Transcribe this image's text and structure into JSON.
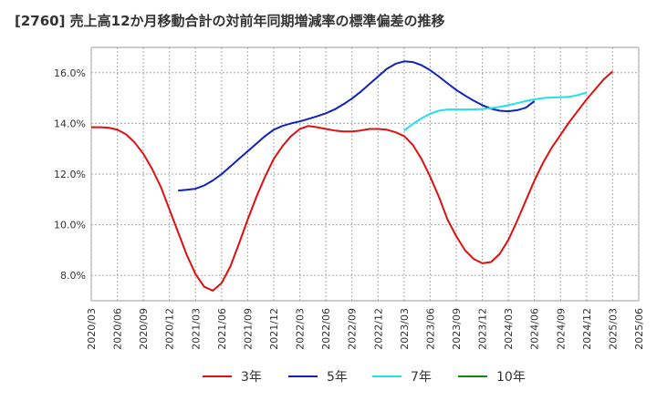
{
  "chart_data": {
    "type": "line",
    "title": "[2760]  売上高12か月移動合計の対前年同期増減率の標準偏差の推移",
    "xlabel": "",
    "ylabel": "",
    "ylim": [
      7.0,
      17.0
    ],
    "yticks": [
      8.0,
      10.0,
      12.0,
      14.0,
      16.0
    ],
    "ytick_labels": [
      "8.0%",
      "10.0%",
      "12.0%",
      "14.0%",
      "16.0%"
    ],
    "xtick_labels": [
      "2020/03",
      "2020/06",
      "2020/09",
      "2020/12",
      "2021/03",
      "2021/06",
      "2021/09",
      "2021/12",
      "2022/03",
      "2022/06",
      "2022/09",
      "2022/12",
      "2023/03",
      "2023/06",
      "2023/09",
      "2023/12",
      "2024/03",
      "2024/06",
      "2024/09",
      "2024/12",
      "2025/03",
      "2025/06"
    ],
    "grid": true,
    "legend_position": "bottom",
    "series": [
      {
        "name": "3年",
        "color": "#dd1111",
        "start": "2020/03",
        "values": [
          13.85,
          13.85,
          13.83,
          13.75,
          13.57,
          13.25,
          12.8,
          12.2,
          11.5,
          10.6,
          9.7,
          8.8,
          8.05,
          7.55,
          7.4,
          7.7,
          8.35,
          9.25,
          10.2,
          11.1,
          11.9,
          12.6,
          13.1,
          13.5,
          13.78,
          13.9,
          13.85,
          13.78,
          13.72,
          13.68,
          13.68,
          13.72,
          13.78,
          13.78,
          13.75,
          13.65,
          13.5,
          13.15,
          12.6,
          11.9,
          11.1,
          10.2,
          9.55,
          9.0,
          8.65,
          8.48,
          8.53,
          8.85,
          9.4,
          10.15,
          10.95,
          11.75,
          12.45,
          13.05,
          13.55,
          14.05,
          14.5,
          14.95,
          15.35,
          15.75,
          16.05
        ]
      },
      {
        "name": "5年",
        "color": "#1122bb",
        "start": "2021/01",
        "values": [
          11.35,
          11.38,
          11.42,
          11.55,
          11.75,
          12.0,
          12.3,
          12.6,
          12.9,
          13.2,
          13.5,
          13.75,
          13.9,
          14.0,
          14.08,
          14.18,
          14.28,
          14.4,
          14.55,
          14.75,
          14.98,
          15.25,
          15.55,
          15.85,
          16.15,
          16.35,
          16.45,
          16.42,
          16.3,
          16.1,
          15.85,
          15.58,
          15.32,
          15.1,
          14.9,
          14.72,
          14.58,
          14.5,
          14.48,
          14.52,
          14.62,
          14.88
        ]
      },
      {
        "name": "7年",
        "color": "#22e0e8",
        "start": "2023/03",
        "values": [
          13.72,
          13.98,
          14.2,
          14.38,
          14.5,
          14.55,
          14.55,
          14.55,
          14.55,
          14.57,
          14.6,
          14.65,
          14.72,
          14.8,
          14.88,
          14.95,
          15.0,
          15.02,
          15.03,
          15.05,
          15.12,
          15.22
        ]
      },
      {
        "name": "10年",
        "color": "#118811",
        "start": "",
        "values": []
      }
    ]
  }
}
